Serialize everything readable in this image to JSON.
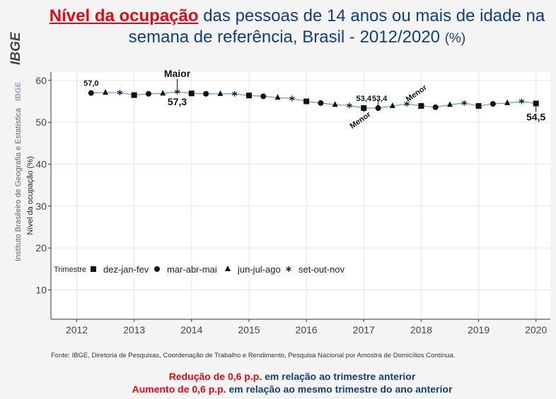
{
  "header": {
    "title_highlight": "Nível da ocupação",
    "title_rest": " das pessoas de 14 anos ou mais de idade na semana de referência, Brasil - 2012/2020",
    "title_unit": "(%)"
  },
  "sidebar": {
    "logo_text": "IBGE",
    "institute_text": "Instituto Brasileiro de Geografia e Estatística",
    "ibge_small": "IBGE"
  },
  "chart_data": {
    "type": "line",
    "ylabel": "Nível da ocupação (%)",
    "xlabel": "",
    "ylim": [
      3,
      62
    ],
    "xlim": [
      2011.55,
      2020.25
    ],
    "yticks": [
      10,
      20,
      30,
      40,
      50,
      60
    ],
    "xticks": [
      2012,
      2013,
      2014,
      2015,
      2016,
      2017,
      2018,
      2019,
      2020
    ],
    "grid": true,
    "line_color": "#5b9bd5",
    "legend": {
      "title": "Trimestre",
      "placement": "bottom-left",
      "entries": [
        {
          "label": "dez-jan-fev",
          "marker": "square"
        },
        {
          "label": "mar-abr-mai",
          "marker": "circle"
        },
        {
          "label": "jun-jul-ago",
          "marker": "triangle"
        },
        {
          "label": "set-out-nov",
          "marker": "asterisk"
        }
      ]
    },
    "series": [
      {
        "x": [
          2012.0,
          2012.25,
          2012.5,
          2012.75,
          2013.0,
          2013.25,
          2013.5,
          2013.75,
          2014.0,
          2014.25,
          2014.5,
          2014.75,
          2015.0,
          2015.25,
          2015.5,
          2015.75,
          2016.0,
          2016.25,
          2016.5,
          2016.75,
          2017.0,
          2017.25,
          2017.5,
          2017.75,
          2018.0,
          2018.25,
          2018.5,
          2018.75,
          2019.0,
          2019.25,
          2019.5,
          2019.75,
          2020.0
        ],
        "values": [
          null,
          57.0,
          57.1,
          57.1,
          56.5,
          56.8,
          56.9,
          57.3,
          56.9,
          56.8,
          56.8,
          56.8,
          56.4,
          56.2,
          55.9,
          55.7,
          55.0,
          54.6,
          54.2,
          54.0,
          53.4,
          53.4,
          53.9,
          54.4,
          53.9,
          53.6,
          54.2,
          54.6,
          53.9,
          54.4,
          54.6,
          55.0,
          54.5
        ],
        "markers": [
          "square",
          "circle",
          "triangle",
          "asterisk",
          "square",
          "circle",
          "triangle",
          "asterisk",
          "square",
          "circle",
          "triangle",
          "asterisk",
          "square",
          "circle",
          "triangle",
          "asterisk",
          "square",
          "circle",
          "triangle",
          "asterisk",
          "square",
          "circle",
          "triangle",
          "asterisk",
          "square",
          "circle",
          "triangle",
          "asterisk",
          "square",
          "circle",
          "triangle",
          "asterisk",
          "square"
        ]
      }
    ],
    "annotations": [
      {
        "text": "57,0",
        "x": 2012.25,
        "y": 57.0
      },
      {
        "text": "Maior",
        "x": 2013.75,
        "y": 57.3
      },
      {
        "text": "57,3",
        "x": 2013.75,
        "y": 57.3
      },
      {
        "text": "53,4",
        "x": 2017.0,
        "y": 53.4
      },
      {
        "text": "53,4",
        "x": 2017.25,
        "y": 53.4
      },
      {
        "text": "Menor",
        "x": 2017.0,
        "y": 53.4
      },
      {
        "text": "Menor",
        "x": 2017.25,
        "y": 53.4
      },
      {
        "text": "54,5",
        "x": 2020.0,
        "y": 54.5
      }
    ]
  },
  "source": "Fonte: IBGE, Diretoria de Pesquisas, Coordenação de Trabalho e Rendimento, Pesquisa Nacional por Amostra de Domicílios Contínua.",
  "footer": {
    "line1_red": "Redução de 0,6 p.p.",
    "line1_rest": " em relação ao trimestre anterior",
    "line2_red": "Aumento de 0,6 p.p.",
    "line2_rest": " em relação ao mesmo trimestre do ano anterior",
    "color_red": "#e30613",
    "color_blue": "#123e7a"
  }
}
